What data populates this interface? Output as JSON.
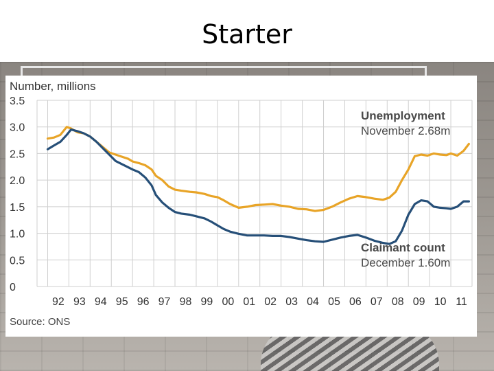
{
  "slide": {
    "title": "Starter"
  },
  "chart_data": {
    "type": "line",
    "ylabel": "Number, millions",
    "source": "Source: ONS",
    "ylim": [
      0,
      3.5
    ],
    "xlim": [
      1991.5,
      2012
    ],
    "y_ticks": [
      "0",
      "0.5",
      "1.0",
      "1.5",
      "2.0",
      "2.5",
      "3.0",
      "3.5"
    ],
    "x_ticks": [
      "92",
      "93",
      "94",
      "95",
      "96",
      "97",
      "98",
      "99",
      "00",
      "01",
      "02",
      "03",
      "04",
      "05",
      "06",
      "07",
      "08",
      "09",
      "10",
      "11"
    ],
    "grid": true,
    "series": [
      {
        "name": "Unemployment",
        "annotation_value": "November 2.68m",
        "color": "#e8a427",
        "x": [
          1992.0,
          1992.3,
          1992.6,
          1992.9,
          1993.1,
          1993.4,
          1993.7,
          1994.0,
          1994.3,
          1994.6,
          1994.9,
          1995.2,
          1995.5,
          1995.8,
          1996.0,
          1996.3,
          1996.6,
          1996.9,
          1997.1,
          1997.4,
          1997.7,
          1998.0,
          1998.3,
          1998.7,
          1999.0,
          1999.4,
          1999.7,
          2000.0,
          2000.3,
          2000.6,
          2001.0,
          2001.4,
          2001.8,
          2002.2,
          2002.6,
          2003.0,
          2003.4,
          2003.8,
          2004.2,
          2004.6,
          2005.0,
          2005.4,
          2005.8,
          2006.2,
          2006.6,
          2007.0,
          2007.4,
          2007.8,
          2008.1,
          2008.4,
          2008.7,
          2009.0,
          2009.3,
          2009.6,
          2009.9,
          2010.2,
          2010.5,
          2010.8,
          2011.0,
          2011.3,
          2011.6,
          2011.85
        ],
        "values": [
          2.78,
          2.8,
          2.85,
          3.0,
          2.97,
          2.9,
          2.88,
          2.82,
          2.72,
          2.62,
          2.52,
          2.48,
          2.44,
          2.4,
          2.35,
          2.32,
          2.28,
          2.2,
          2.08,
          2.0,
          1.88,
          1.82,
          1.8,
          1.78,
          1.77,
          1.74,
          1.7,
          1.68,
          1.62,
          1.55,
          1.48,
          1.5,
          1.53,
          1.54,
          1.55,
          1.52,
          1.5,
          1.46,
          1.45,
          1.42,
          1.44,
          1.5,
          1.58,
          1.65,
          1.7,
          1.68,
          1.65,
          1.63,
          1.67,
          1.78,
          2.0,
          2.2,
          2.45,
          2.48,
          2.46,
          2.5,
          2.48,
          2.47,
          2.5,
          2.46,
          2.55,
          2.68
        ]
      },
      {
        "name": "Claimant count",
        "annotation_value": "December 1.60m",
        "color": "#264f78",
        "x": [
          1992.0,
          1992.3,
          1992.6,
          1992.9,
          1993.1,
          1993.4,
          1993.7,
          1994.0,
          1994.3,
          1994.6,
          1994.9,
          1995.2,
          1995.5,
          1995.8,
          1996.0,
          1996.3,
          1996.6,
          1996.9,
          1997.1,
          1997.4,
          1997.7,
          1998.0,
          1998.3,
          1998.7,
          1999.0,
          1999.4,
          1999.7,
          2000.0,
          2000.3,
          2000.6,
          2001.0,
          2001.4,
          2001.8,
          2002.2,
          2002.6,
          2003.0,
          2003.4,
          2003.8,
          2004.2,
          2004.6,
          2005.0,
          2005.4,
          2005.8,
          2006.2,
          2006.6,
          2007.0,
          2007.4,
          2007.8,
          2008.1,
          2008.4,
          2008.7,
          2009.0,
          2009.3,
          2009.6,
          2009.9,
          2010.2,
          2010.5,
          2010.8,
          2011.0,
          2011.3,
          2011.6,
          2011.85
        ],
        "values": [
          2.58,
          2.65,
          2.72,
          2.85,
          2.95,
          2.92,
          2.88,
          2.82,
          2.72,
          2.6,
          2.48,
          2.36,
          2.3,
          2.24,
          2.2,
          2.15,
          2.05,
          1.9,
          1.72,
          1.58,
          1.48,
          1.4,
          1.37,
          1.35,
          1.32,
          1.28,
          1.22,
          1.15,
          1.08,
          1.03,
          0.99,
          0.96,
          0.96,
          0.96,
          0.95,
          0.95,
          0.93,
          0.9,
          0.87,
          0.85,
          0.84,
          0.88,
          0.92,
          0.95,
          0.97,
          0.92,
          0.86,
          0.82,
          0.8,
          0.85,
          1.05,
          1.35,
          1.55,
          1.62,
          1.6,
          1.5,
          1.48,
          1.47,
          1.46,
          1.5,
          1.6,
          1.6
        ]
      }
    ]
  }
}
